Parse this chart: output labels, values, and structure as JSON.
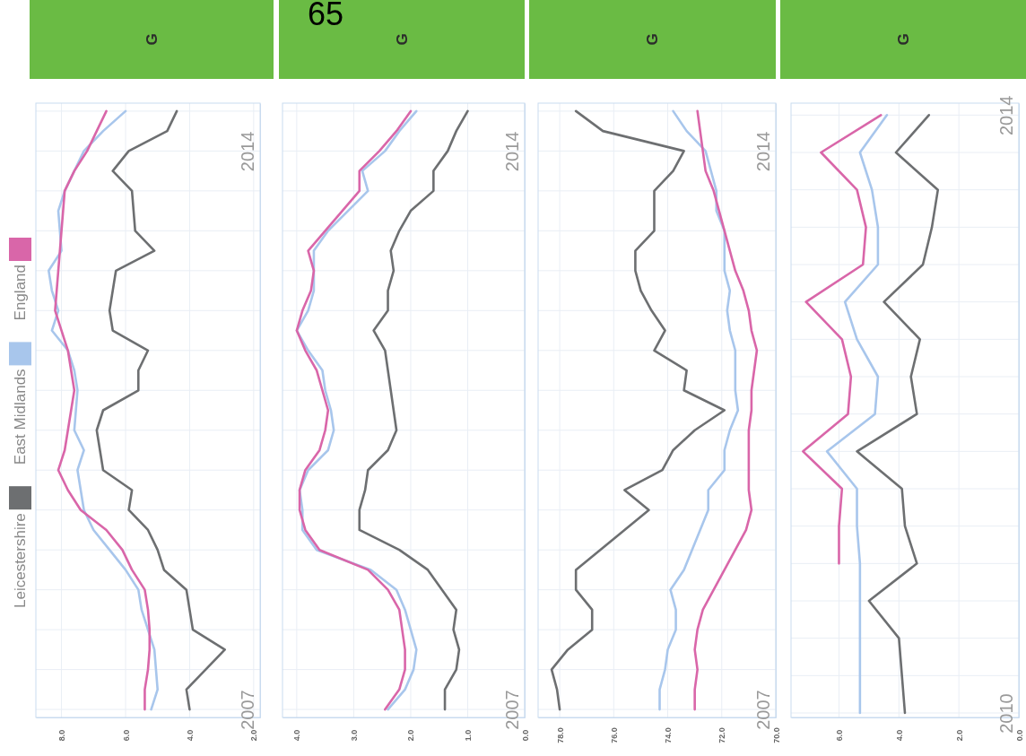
{
  "chart_data": [
    {
      "type": "line",
      "title": "G",
      "legend": "left",
      "grid": true,
      "xlim": [
        8.8,
        1.8
      ],
      "xticks": [
        {
          "value": 8,
          "label": "8.0"
        },
        {
          "value": 6,
          "label": "6.0"
        },
        {
          "value": 4,
          "label": "4.0"
        },
        {
          "value": 2,
          "label": "2.0"
        }
      ],
      "ylim": [
        2006.9,
        2014.6
      ],
      "yticks": [
        {
          "value": 2007,
          "label": "2007"
        },
        {
          "value": 2007.5,
          "label": null
        },
        {
          "value": 2008,
          "label": null
        },
        {
          "value": 2008.5,
          "label": null
        },
        {
          "value": 2009,
          "label": null
        },
        {
          "value": 2009.5,
          "label": null
        },
        {
          "value": 2010,
          "label": null
        },
        {
          "value": 2010.5,
          "label": null
        },
        {
          "value": 2011,
          "label": null
        },
        {
          "value": 2011.5,
          "label": null
        },
        {
          "value": 2012,
          "label": null
        },
        {
          "value": 2012.5,
          "label": null
        },
        {
          "value": 2013,
          "label": null
        },
        {
          "value": 2013.5,
          "label": null
        },
        {
          "value": 2014,
          "label": "2014"
        },
        {
          "value": 2014.5,
          "label": null
        }
      ],
      "series": [
        {
          "name": "Leicestershire",
          "color": "#6d6f71",
          "x": [
            4.0,
            4.1,
            3.5,
            2.9,
            3.9,
            4.0,
            4.1,
            4.8,
            5.0,
            5.3,
            5.9,
            5.8,
            6.7,
            6.8,
            6.9,
            6.7,
            5.6,
            5.6,
            5.3,
            6.4,
            6.5,
            6.4,
            6.3,
            5.1,
            5.7,
            5.75,
            5.8,
            6.4,
            5.9,
            4.7,
            4.4
          ],
          "values": [
            2007,
            2007.25,
            2007.5,
            2007.75,
            2008,
            2008.25,
            2008.5,
            2008.75,
            2009,
            2009.25,
            2009.5,
            2009.75,
            2010,
            2010.25,
            2010.5,
            2010.75,
            2011,
            2011.25,
            2011.5,
            2011.75,
            2012,
            2012.25,
            2012.5,
            2012.75,
            2013,
            2013.25,
            2013.5,
            2013.75,
            2014,
            2014.25,
            2014.5
          ]
        },
        {
          "name": "East Midlands",
          "color": "#a8c6ec",
          "x": [
            5.2,
            5.0,
            5.05,
            5.1,
            5.3,
            5.5,
            5.6,
            6.0,
            6.5,
            7.0,
            7.3,
            7.4,
            7.5,
            7.3,
            7.6,
            7.55,
            7.5,
            7.6,
            7.8,
            8.3,
            8.1,
            8.3,
            8.4,
            8.0,
            8.05,
            8.1,
            7.9,
            7.6,
            7.3,
            6.7,
            6.0
          ],
          "values": [
            2007,
            2007.25,
            2007.5,
            2007.75,
            2008,
            2008.25,
            2008.5,
            2008.75,
            2009,
            2009.25,
            2009.5,
            2009.75,
            2010,
            2010.25,
            2010.5,
            2010.75,
            2011,
            2011.25,
            2011.5,
            2011.75,
            2012,
            2012.25,
            2012.5,
            2012.75,
            2013,
            2013.25,
            2013.5,
            2013.75,
            2014,
            2014.25,
            2014.5
          ]
        },
        {
          "name": "England",
          "color": "#d966a9",
          "x": [
            5.4,
            5.4,
            5.3,
            5.25,
            5.25,
            5.3,
            5.4,
            5.8,
            6.1,
            6.6,
            7.4,
            7.8,
            8.1,
            7.9,
            7.8,
            7.7,
            7.6,
            7.7,
            7.8,
            8.0,
            8.2,
            8.15,
            8.1,
            8.05,
            8.0,
            7.95,
            7.9,
            7.6,
            7.2,
            6.9,
            6.6
          ],
          "values": [
            2007,
            2007.25,
            2007.5,
            2007.75,
            2008,
            2008.25,
            2008.5,
            2008.75,
            2009,
            2009.25,
            2009.5,
            2009.75,
            2010,
            2010.25,
            2010.5,
            2010.75,
            2011,
            2011.25,
            2011.5,
            2011.75,
            2012,
            2012.25,
            2012.5,
            2012.75,
            2013,
            2013.25,
            2013.5,
            2013.75,
            2014,
            2014.25,
            2014.5
          ]
        }
      ]
    },
    {
      "type": "line",
      "title": "G",
      "grid": true,
      "annotations": [
        "65"
      ],
      "xlim": [
        4.25,
        0
      ],
      "xticks": [
        {
          "value": 4,
          "label": "4.0"
        },
        {
          "value": 3,
          "label": "3.0"
        },
        {
          "value": 2,
          "label": "2.0"
        },
        {
          "value": 1,
          "label": "1.0"
        },
        {
          "value": 0,
          "label": "0.0"
        }
      ],
      "ylim": [
        2006.9,
        2014.6
      ],
      "yticks": [
        {
          "value": 2007,
          "label": "2007"
        },
        {
          "value": 2007.5,
          "label": null
        },
        {
          "value": 2008,
          "label": null
        },
        {
          "value": 2008.5,
          "label": null
        },
        {
          "value": 2009,
          "label": null
        },
        {
          "value": 2009.5,
          "label": null
        },
        {
          "value": 2010,
          "label": null
        },
        {
          "value": 2010.5,
          "label": null
        },
        {
          "value": 2011,
          "label": null
        },
        {
          "value": 2011.5,
          "label": null
        },
        {
          "value": 2012,
          "label": null
        },
        {
          "value": 2012.5,
          "label": null
        },
        {
          "value": 2013,
          "label": null
        },
        {
          "value": 2013.5,
          "label": null
        },
        {
          "value": 2014,
          "label": "2014"
        },
        {
          "value": 2014.5,
          "label": null
        }
      ],
      "series": [
        {
          "color": "#6d6f71",
          "x": [
            1.4,
            1.4,
            1.2,
            1.15,
            1.25,
            1.2,
            1.45,
            1.7,
            2.2,
            2.9,
            2.9,
            2.8,
            2.75,
            2.4,
            2.25,
            2.3,
            2.35,
            2.4,
            2.45,
            2.65,
            2.4,
            2.4,
            2.3,
            2.35,
            2.2,
            2.0,
            1.6,
            1.6,
            1.35,
            1.2,
            1.0
          ],
          "values": [
            2007,
            2007.25,
            2007.5,
            2007.75,
            2008,
            2008.25,
            2008.5,
            2008.75,
            2009,
            2009.25,
            2009.5,
            2009.75,
            2010,
            2010.25,
            2010.5,
            2010.75,
            2011,
            2011.25,
            2011.5,
            2011.75,
            2012,
            2012.25,
            2012.5,
            2012.75,
            2013,
            2013.25,
            2013.5,
            2013.75,
            2014,
            2014.25,
            2014.5
          ]
        },
        {
          "color": "#a8c6ec",
          "x": [
            2.4,
            2.1,
            1.95,
            1.9,
            2.0,
            2.1,
            2.25,
            2.7,
            3.65,
            3.9,
            3.9,
            3.95,
            3.8,
            3.45,
            3.35,
            3.4,
            3.5,
            3.55,
            3.8,
            4.0,
            3.8,
            3.7,
            3.7,
            3.7,
            3.45,
            3.1,
            2.75,
            2.85,
            2.45,
            2.2,
            1.9
          ],
          "values": [
            2007,
            2007.25,
            2007.5,
            2007.75,
            2008,
            2008.25,
            2008.5,
            2008.75,
            2009,
            2009.25,
            2009.5,
            2009.75,
            2010,
            2010.25,
            2010.5,
            2010.75,
            2011,
            2011.25,
            2011.5,
            2011.75,
            2012,
            2012.25,
            2012.5,
            2012.75,
            2013,
            2013.25,
            2013.5,
            2013.75,
            2014,
            2014.25,
            2014.5
          ]
        },
        {
          "color": "#d966a9",
          "x": [
            2.45,
            2.2,
            2.1,
            2.1,
            2.15,
            2.2,
            2.4,
            2.75,
            3.6,
            3.85,
            3.95,
            3.95,
            3.85,
            3.6,
            3.5,
            3.45,
            3.55,
            3.65,
            3.85,
            4.0,
            3.9,
            3.75,
            3.7,
            3.8,
            3.5,
            3.2,
            2.9,
            2.9,
            2.55,
            2.25,
            2.0
          ],
          "values": [
            2007,
            2007.25,
            2007.5,
            2007.75,
            2008,
            2008.25,
            2008.5,
            2008.75,
            2009,
            2009.25,
            2009.5,
            2009.75,
            2010,
            2010.25,
            2010.5,
            2010.75,
            2011,
            2011.25,
            2011.5,
            2011.75,
            2012,
            2012.25,
            2012.5,
            2012.75,
            2013,
            2013.25,
            2013.5,
            2013.75,
            2014,
            2014.25,
            2014.5
          ]
        }
      ]
    },
    {
      "type": "line",
      "title": "G",
      "grid": true,
      "xlim": [
        78.8,
        70
      ],
      "xticks": [
        {
          "value": 78,
          "label": "78.0"
        },
        {
          "value": 76,
          "label": "76.0"
        },
        {
          "value": 74,
          "label": "74.0"
        },
        {
          "value": 72,
          "label": "72.0"
        },
        {
          "value": 70,
          "label": "70.0"
        }
      ],
      "ylim": [
        2006.9,
        2014.6
      ],
      "yticks": [
        {
          "value": 2007,
          "label": "2007"
        },
        {
          "value": 2007.5,
          "label": null
        },
        {
          "value": 2008,
          "label": null
        },
        {
          "value": 2008.5,
          "label": null
        },
        {
          "value": 2009,
          "label": null
        },
        {
          "value": 2009.5,
          "label": null
        },
        {
          "value": 2010,
          "label": null
        },
        {
          "value": 2010.5,
          "label": null
        },
        {
          "value": 2011,
          "label": null
        },
        {
          "value": 2011.5,
          "label": null
        },
        {
          "value": 2012,
          "label": null
        },
        {
          "value": 2012.5,
          "label": null
        },
        {
          "value": 2013,
          "label": null
        },
        {
          "value": 2013.5,
          "label": null
        },
        {
          "value": 2014,
          "label": "2014"
        },
        {
          "value": 2014.5,
          "label": null
        }
      ],
      "series": [
        {
          "color": "#6d6f71",
          "x": [
            78.0,
            78.1,
            78.3,
            77.7,
            76.8,
            76.8,
            77.4,
            77.4,
            76.5,
            75.6,
            74.7,
            75.6,
            74.2,
            73.8,
            73.0,
            71.9,
            73.4,
            73.3,
            74.5,
            74.1,
            74.6,
            75.0,
            75.2,
            75.2,
            74.5,
            74.5,
            74.5,
            73.8,
            73.4,
            76.4,
            77.4
          ],
          "values": [
            2007,
            2007.25,
            2007.5,
            2007.75,
            2008,
            2008.25,
            2008.5,
            2008.75,
            2009,
            2009.25,
            2009.5,
            2009.75,
            2010,
            2010.25,
            2010.5,
            2010.75,
            2011,
            2011.25,
            2011.5,
            2011.75,
            2012,
            2012.25,
            2012.5,
            2012.75,
            2013,
            2013.25,
            2013.5,
            2013.75,
            2014,
            2014.25,
            2014.5
          ]
        },
        {
          "color": "#a8c6ec",
          "x": [
            74.3,
            74.3,
            74.1,
            74.0,
            73.7,
            73.7,
            73.9,
            73.4,
            73.1,
            72.8,
            72.5,
            72.5,
            71.9,
            71.9,
            71.7,
            71.4,
            71.5,
            71.5,
            71.5,
            71.7,
            71.8,
            71.7,
            71.9,
            71.9,
            71.9,
            72.2,
            72.2,
            72.4,
            72.6,
            73.3,
            73.8
          ],
          "values": [
            2007,
            2007.25,
            2007.5,
            2007.75,
            2008,
            2008.25,
            2008.5,
            2008.75,
            2009,
            2009.25,
            2009.5,
            2009.75,
            2010,
            2010.25,
            2010.5,
            2010.75,
            2011,
            2011.25,
            2011.5,
            2011.75,
            2012,
            2012.25,
            2012.5,
            2012.75,
            2013,
            2013.25,
            2013.5,
            2013.75,
            2014,
            2014.25,
            2014.5
          ]
        },
        {
          "color": "#d966a9",
          "x": [
            73.0,
            73.0,
            72.9,
            73.0,
            72.9,
            72.7,
            72.3,
            71.9,
            71.5,
            71.1,
            70.9,
            71.0,
            71.0,
            71.0,
            71.0,
            70.9,
            70.9,
            70.8,
            70.7,
            70.9,
            71.0,
            71.2,
            71.5,
            71.7,
            71.9,
            72.1,
            72.3,
            72.6,
            72.7,
            72.8,
            72.9
          ],
          "values": [
            2007,
            2007.25,
            2007.5,
            2007.75,
            2008,
            2008.25,
            2008.5,
            2008.75,
            2009,
            2009.25,
            2009.5,
            2009.75,
            2010,
            2010.25,
            2010.5,
            2010.75,
            2011,
            2011.25,
            2011.5,
            2011.75,
            2012,
            2012.25,
            2012.5,
            2012.75,
            2013,
            2013.25,
            2013.5,
            2013.75,
            2014,
            2014.25,
            2014.5
          ]
        }
      ]
    },
    {
      "type": "line",
      "title": "G",
      "grid": true,
      "xlim": [
        7.6,
        0
      ],
      "xticks": [
        {
          "value": 6,
          "label": "6.0"
        },
        {
          "value": 4,
          "label": "4.0"
        },
        {
          "value": 2,
          "label": "2.0"
        },
        {
          "value": 0,
          "label": "0.0"
        }
      ],
      "ylim": [
        2009.97,
        2014.08
      ],
      "yticks": [
        {
          "value": 2010,
          "label": "2010"
        },
        {
          "value": 2010.25,
          "label": null
        },
        {
          "value": 2010.5,
          "label": null
        },
        {
          "value": 2010.75,
          "label": null
        },
        {
          "value": 2011,
          "label": null
        },
        {
          "value": 2011.25,
          "label": null
        },
        {
          "value": 2011.5,
          "label": null
        },
        {
          "value": 2011.75,
          "label": null
        },
        {
          "value": 2012,
          "label": null
        },
        {
          "value": 2012.25,
          "label": null
        },
        {
          "value": 2012.5,
          "label": null
        },
        {
          "value": 2012.75,
          "label": null
        },
        {
          "value": 2013,
          "label": null
        },
        {
          "value": 2013.25,
          "label": null
        },
        {
          "value": 2013.5,
          "label": null
        },
        {
          "value": 2013.75,
          "label": null
        },
        {
          "value": 2014,
          "label": "2014"
        }
      ],
      "series": [
        {
          "color": "#6d6f71",
          "x": [
            3.8,
            3.9,
            4.0,
            5.0,
            3.4,
            3.8,
            3.9,
            5.4,
            3.4,
            3.6,
            3.3,
            4.5,
            3.2,
            2.9,
            2.7,
            4.1,
            3.0
          ],
          "values": [
            2010,
            2010.25,
            2010.5,
            2010.75,
            2011,
            2011.25,
            2011.5,
            2011.75,
            2012,
            2012.25,
            2012.5,
            2012.75,
            2013,
            2013.25,
            2013.5,
            2013.75,
            2014
          ]
        },
        {
          "color": "#a8c6ec",
          "x": [
            5.3,
            5.3,
            5.3,
            5.3,
            5.3,
            5.4,
            5.4,
            6.4,
            4.8,
            4.7,
            5.4,
            5.8,
            4.7,
            4.7,
            4.9,
            5.3,
            4.4
          ],
          "values": [
            2010,
            2010.25,
            2010.5,
            2010.75,
            2011,
            2011.25,
            2011.5,
            2011.75,
            2012,
            2012.25,
            2012.5,
            2012.75,
            2013,
            2013.25,
            2013.5,
            2013.75,
            2014
          ]
        },
        {
          "color": "#d966a9",
          "x": [
            6.0,
            6.0,
            5.9,
            7.2,
            5.7,
            5.6,
            5.9,
            7.1,
            5.2,
            5.1,
            5.4,
            6.6,
            4.6
          ],
          "values": [
            2011,
            2011.25,
            2011.5,
            2011.75,
            2012,
            2012.25,
            2012.5,
            2012.75,
            2013,
            2013.25,
            2013.5,
            2013.75,
            2014
          ]
        }
      ]
    }
  ]
}
